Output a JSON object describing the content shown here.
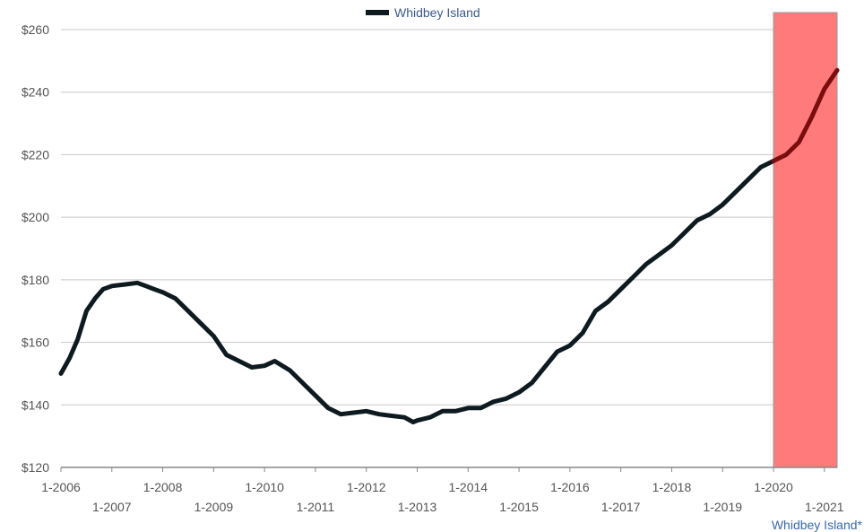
{
  "chart_data": {
    "type": "line",
    "legend": {
      "label": "Whidbey Island",
      "placement": "top-center"
    },
    "footnote": "Whidbey Island*",
    "y_ticks": [
      "$120",
      "$140",
      "$160",
      "$180",
      "$200",
      "$220",
      "$240",
      "$260"
    ],
    "ylim": [
      120,
      260
    ],
    "xlim": [
      2006.0,
      2021.25
    ],
    "x_ticks_upper": [
      "1-2006",
      "1-2008",
      "1-2010",
      "1-2012",
      "1-2014",
      "1-2016",
      "1-2018",
      "1-2020"
    ],
    "x_ticks_lower": [
      "1-2007",
      "1-2009",
      "1-2011",
      "1-2013",
      "1-2015",
      "1-2017",
      "1-2019",
      "1-2021"
    ],
    "grid": true,
    "highlight_region": {
      "x_start": 2020.0,
      "x_end": 2021.25,
      "color": "#ff7b7b"
    },
    "colors": {
      "line": "#0d1a1f",
      "line_highlight": "#7a0d0d",
      "grid": "#c8c8c8",
      "region_border": "#999999"
    },
    "series": [
      {
        "name": "Whidbey Island",
        "x": [
          2006.0,
          2006.17,
          2006.33,
          2006.5,
          2006.67,
          2006.83,
          2007.0,
          2007.25,
          2007.5,
          2007.67,
          2007.83,
          2008.0,
          2008.25,
          2008.5,
          2008.75,
          2009.0,
          2009.25,
          2009.5,
          2009.75,
          2010.0,
          2010.2,
          2010.5,
          2010.75,
          2011.0,
          2011.25,
          2011.5,
          2011.75,
          2012.0,
          2012.25,
          2012.5,
          2012.75,
          2012.92,
          2013.0,
          2013.25,
          2013.5,
          2013.75,
          2014.0,
          2014.25,
          2014.5,
          2014.75,
          2015.0,
          2015.25,
          2015.5,
          2015.75,
          2016.0,
          2016.25,
          2016.5,
          2016.75,
          2017.0,
          2017.25,
          2017.5,
          2017.75,
          2018.0,
          2018.25,
          2018.5,
          2018.75,
          2019.0,
          2019.25,
          2019.5,
          2019.75,
          2020.0,
          2020.25,
          2020.5,
          2020.75,
          2021.0,
          2021.25
        ],
        "y": [
          150,
          155,
          161,
          170,
          174,
          177,
          178,
          178.5,
          179,
          178,
          177,
          176,
          174,
          170,
          166,
          162,
          156,
          154,
          152,
          152.5,
          154,
          151,
          147,
          143,
          139,
          137,
          137.5,
          138,
          137,
          136.5,
          136,
          134.5,
          135,
          136,
          138,
          138,
          139,
          139,
          141,
          142,
          144,
          147,
          152,
          157,
          159,
          163,
          170,
          173,
          177,
          181,
          185,
          188,
          191,
          195,
          199,
          201,
          204,
          208,
          212,
          216,
          218,
          220,
          224,
          232,
          241,
          247
        ]
      }
    ]
  }
}
